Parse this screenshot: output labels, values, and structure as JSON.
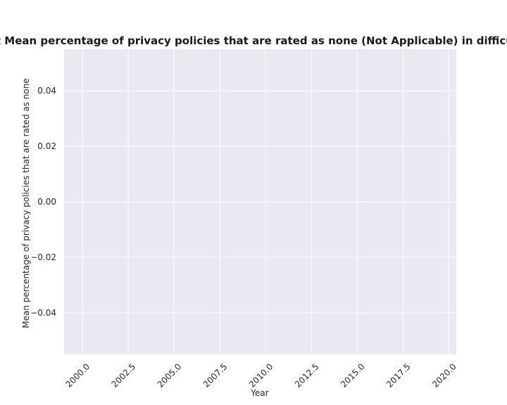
{
  "chart_data": {
    "type": "line",
    "title": "sport Mean percentage of privacy policies that are rated as none (Not Applicable) in difficulty t",
    "xlabel": "Year",
    "ylabel": "Mean percentage of privacy policies that are rated as none",
    "xlim": [
      1999.0,
      2020.4
    ],
    "ylim": [
      -0.055,
      0.055
    ],
    "x_ticks": [
      2000.0,
      2002.5,
      2005.0,
      2007.5,
      2010.0,
      2012.5,
      2015.0,
      2017.5,
      2020.0
    ],
    "x_tick_labels": [
      "2000.0",
      "2002.5",
      "2005.0",
      "2007.5",
      "2010.0",
      "2012.5",
      "2015.0",
      "2017.5",
      "2020.0"
    ],
    "y_ticks": [
      0.04,
      0.02,
      0.0,
      -0.02,
      -0.04
    ],
    "y_tick_labels": [
      "0.04",
      "0.02",
      "0.00",
      "−0.02",
      "−0.04"
    ],
    "series": [],
    "grid": true,
    "style": {
      "plot_background": "#e9e9f1",
      "grid_color": "#ffffff",
      "text_color": "#262626"
    }
  }
}
